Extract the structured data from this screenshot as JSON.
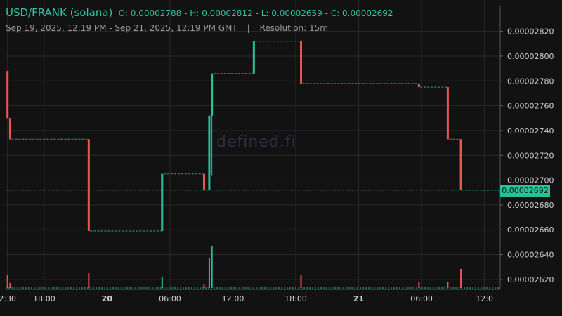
{
  "header": {
    "pair": "USD/FRANK (solana)",
    "open_label": "O:",
    "open": "0.00002788",
    "high_label": "H:",
    "high": "0.00002812",
    "low_label": "L:",
    "low": "0.00002659",
    "close_label": "C:",
    "close": "0.00002692",
    "range": "Sep 19, 2025, 12:19 PM - Sep 21, 2025, 12:19 PM GMT",
    "resolution": "Resolution: 15m"
  },
  "watermark": "defined.fi",
  "colors": {
    "up": "#26c29a",
    "down": "#ef5350",
    "grid": "#2a2a2a",
    "bg": "#121212",
    "axis_text": "#cfcfcf",
    "accent": "#2ec4a0"
  },
  "chart_data": {
    "type": "candlestick",
    "x_ticks": [
      "2:30",
      "18:00",
      "20",
      "06:00",
      "12:00",
      "18:00",
      "21",
      "06:00",
      "12:0"
    ],
    "x_ticks_hours": [
      14.5,
      18,
      24,
      30,
      36,
      42,
      48,
      54,
      60
    ],
    "y_ticks": [
      "0.00002820",
      "0.00002800",
      "0.00002780",
      "0.00002760",
      "0.00002740",
      "0.00002720",
      "0.00002700",
      "0.00002680",
      "0.00002660",
      "0.00002640",
      "0.00002620"
    ],
    "ylim": [
      2.612e-05,
      2.83e-05
    ],
    "xlim_hours": [
      14.32,
      61.5
    ],
    "last_price": "0.00002692",
    "grid": true,
    "candles": [
      {
        "t": 14.5,
        "o": 2.788e-05,
        "h": 2.788e-05,
        "l": 2.75e-05,
        "c": 2.75e-05
      },
      {
        "t": 14.75,
        "o": 2.75e-05,
        "h": 2.75e-05,
        "l": 2.733e-05,
        "c": 2.733e-05
      },
      {
        "t": 22.25,
        "o": 2.733e-05,
        "h": 2.733e-05,
        "l": 2.659e-05,
        "c": 2.659e-05
      },
      {
        "t": 29.25,
        "o": 2.659e-05,
        "h": 2.705e-05,
        "l": 2.659e-05,
        "c": 2.705e-05
      },
      {
        "t": 33.25,
        "o": 2.705e-05,
        "h": 2.705e-05,
        "l": 2.692e-05,
        "c": 2.692e-05
      },
      {
        "t": 33.75,
        "o": 2.692e-05,
        "h": 2.752e-05,
        "l": 2.692e-05,
        "c": 2.752e-05
      },
      {
        "t": 34.0,
        "o": 2.752e-05,
        "h": 2.786e-05,
        "l": 2.704e-05,
        "c": 2.786e-05
      },
      {
        "t": 38.0,
        "o": 2.786e-05,
        "h": 2.812e-05,
        "l": 2.786e-05,
        "c": 2.812e-05
      },
      {
        "t": 42.5,
        "o": 2.812e-05,
        "h": 2.812e-05,
        "l": 2.778e-05,
        "c": 2.778e-05
      },
      {
        "t": 53.75,
        "o": 2.778e-05,
        "h": 2.778e-05,
        "l": 2.775e-05,
        "c": 2.775e-05
      },
      {
        "t": 56.5,
        "o": 2.775e-05,
        "h": 2.775e-05,
        "l": 2.733e-05,
        "c": 2.733e-05
      },
      {
        "t": 57.75,
        "o": 2.733e-05,
        "h": 2.733e-05,
        "l": 2.692e-05,
        "c": 2.692e-05
      }
    ],
    "volume_bars": [
      {
        "t": 14.5,
        "v": 0.3,
        "dir": "down"
      },
      {
        "t": 14.75,
        "v": 0.12,
        "dir": "down"
      },
      {
        "t": 22.25,
        "v": 0.35,
        "dir": "down"
      },
      {
        "t": 29.25,
        "v": 0.25,
        "dir": "up"
      },
      {
        "t": 33.25,
        "v": 0.08,
        "dir": "down"
      },
      {
        "t": 33.75,
        "v": 0.7,
        "dir": "up"
      },
      {
        "t": 34.0,
        "v": 1.0,
        "dir": "up"
      },
      {
        "t": 42.5,
        "v": 0.3,
        "dir": "down"
      },
      {
        "t": 53.75,
        "v": 0.14,
        "dir": "down"
      },
      {
        "t": 56.5,
        "v": 0.14,
        "dir": "down"
      },
      {
        "t": 57.75,
        "v": 0.45,
        "dir": "down"
      }
    ]
  }
}
